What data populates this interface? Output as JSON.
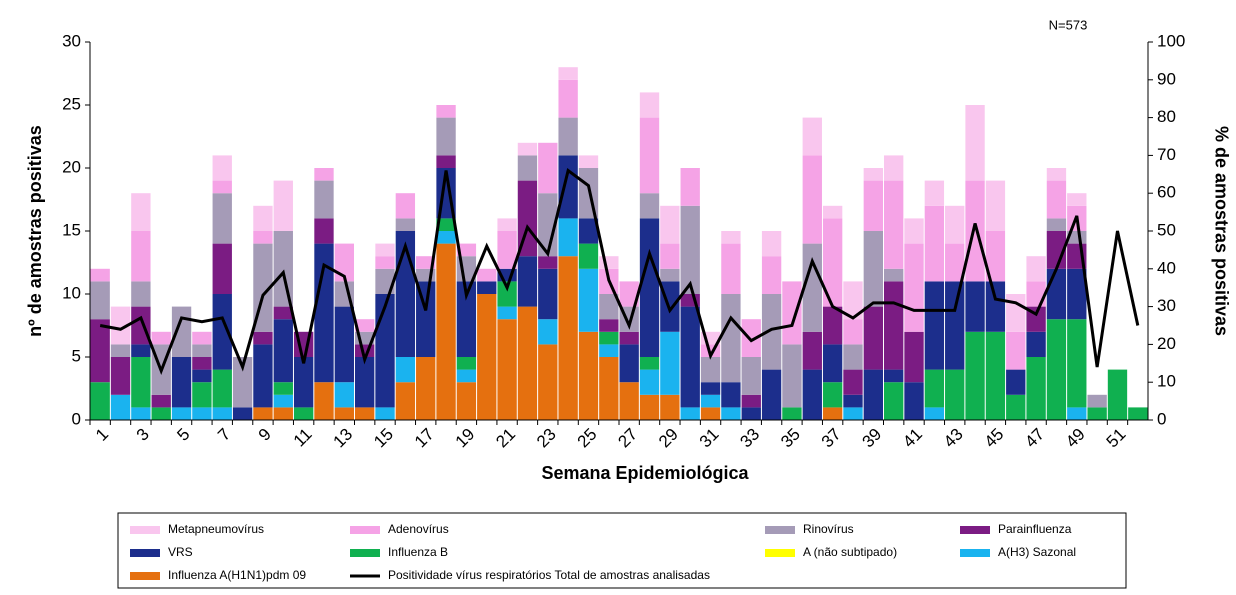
{
  "chart_data": {
    "type": "bar",
    "stacked": true,
    "annotation": "N=573",
    "x_label": "Semana Epidemiológica",
    "y_label": "nº de amostras positivas",
    "y2_label": "% de amostras positivas",
    "categories": [
      1,
      null,
      3,
      null,
      5,
      null,
      7,
      null,
      9,
      null,
      11,
      null,
      13,
      null,
      15,
      null,
      17,
      null,
      19,
      null,
      21,
      null,
      23,
      null,
      25,
      null,
      27,
      null,
      29,
      null,
      31,
      null,
      33,
      null,
      35,
      null,
      37,
      null,
      39,
      null,
      41,
      null,
      43,
      null,
      45,
      null,
      47,
      null,
      49,
      null,
      51,
      null
    ],
    "ylim": [
      0,
      30
    ],
    "yticks": [
      0,
      5,
      10,
      15,
      20,
      25,
      30
    ],
    "y2lim": [
      0,
      100
    ],
    "y2ticks": [
      0,
      10,
      20,
      30,
      40,
      50,
      60,
      70,
      80,
      90,
      100
    ],
    "series": [
      {
        "name": "Metapneumovírus",
        "color": "#f9c6ee",
        "values": [
          0,
          3,
          3,
          0,
          0,
          0,
          2,
          0,
          2,
          4,
          0,
          0,
          0,
          0,
          1,
          0,
          0,
          0,
          0,
          0,
          1,
          1,
          0,
          1,
          1,
          1,
          0,
          2,
          3,
          0,
          1,
          1,
          0,
          2,
          0,
          3,
          1,
          3,
          1,
          2,
          2,
          2,
          3,
          6,
          4,
          3,
          2,
          1,
          1,
          0,
          0,
          0
        ]
      },
      {
        "name": "Adenovírus",
        "color": "#f5a3e6",
        "values": [
          1,
          0,
          4,
          1,
          0,
          1,
          1,
          0,
          1,
          0,
          0,
          1,
          3,
          1,
          1,
          2,
          1,
          1,
          1,
          1,
          3,
          0,
          4,
          3,
          0,
          2,
          2,
          6,
          2,
          3,
          1,
          4,
          3,
          3,
          5,
          7,
          7,
          2,
          4,
          7,
          7,
          6,
          3,
          8,
          4,
          3,
          2,
          3,
          2,
          0,
          0,
          0
        ]
      },
      {
        "name": "Rinovírus",
        "color": "#a59bb7",
        "values": [
          3,
          1,
          2,
          4,
          4,
          1,
          4,
          4,
          7,
          6,
          0,
          3,
          2,
          1,
          2,
          1,
          1,
          3,
          2,
          0,
          0,
          2,
          5,
          3,
          4,
          2,
          2,
          2,
          1,
          7,
          2,
          7,
          3,
          6,
          5,
          7,
          0,
          2,
          6,
          1,
          0,
          0,
          0,
          0,
          0,
          0,
          0,
          1,
          1,
          1,
          0,
          0
        ]
      },
      {
        "name": "Parainfluenza",
        "color": "#7b1c83",
        "values": [
          5,
          3,
          3,
          1,
          0,
          1,
          4,
          0,
          1,
          1,
          2,
          2,
          0,
          1,
          0,
          0,
          0,
          1,
          0,
          0,
          0,
          6,
          1,
          0,
          0,
          1,
          1,
          0,
          0,
          1,
          0,
          0,
          1,
          0,
          0,
          3,
          3,
          2,
          5,
          7,
          4,
          0,
          0,
          0,
          0,
          0,
          2,
          3,
          2,
          0,
          0,
          0
        ]
      },
      {
        "name": "VRS",
        "color": "#1c2e8c",
        "values": [
          0,
          0,
          1,
          0,
          4,
          1,
          6,
          1,
          5,
          5,
          4,
          11,
          6,
          4,
          9,
          10,
          6,
          4,
          6,
          1,
          1,
          4,
          4,
          5,
          2,
          0,
          3,
          11,
          4,
          8,
          1,
          2,
          1,
          4,
          0,
          4,
          3,
          1,
          4,
          1,
          3,
          7,
          7,
          4,
          4,
          2,
          2,
          4,
          4,
          0,
          0,
          0
        ]
      },
      {
        "name": "Influenza B",
        "color": "#10b050",
        "values": [
          3,
          0,
          4,
          1,
          0,
          2,
          3,
          0,
          0,
          1,
          1,
          0,
          0,
          0,
          0,
          0,
          0,
          1,
          1,
          0,
          2,
          0,
          0,
          0,
          2,
          1,
          0,
          1,
          0,
          0,
          0,
          0,
          0,
          0,
          1,
          0,
          2,
          0,
          0,
          3,
          0,
          3,
          4,
          7,
          7,
          2,
          5,
          8,
          7,
          1,
          4,
          1
        ]
      },
      {
        "name": "A (não subtipado)",
        "color": "#ffff00",
        "values": [
          0,
          0,
          0,
          0,
          0,
          0,
          0,
          0,
          0,
          0,
          0,
          0,
          0,
          0,
          0,
          0,
          0,
          0,
          0,
          0,
          0,
          0,
          0,
          0,
          0,
          0,
          0,
          0,
          0,
          0,
          0,
          0,
          0,
          0,
          0,
          0,
          0,
          0,
          0,
          0,
          0,
          0,
          0,
          0,
          0,
          0,
          0,
          0,
          0,
          0,
          0,
          0
        ]
      },
      {
        "name": "A(H3) Sazonal",
        "color": "#1ab3ef",
        "values": [
          0,
          2,
          1,
          0,
          1,
          1,
          1,
          0,
          0,
          1,
          0,
          0,
          2,
          0,
          1,
          2,
          0,
          1,
          1,
          0,
          1,
          0,
          2,
          3,
          5,
          1,
          0,
          2,
          5,
          1,
          1,
          1,
          0,
          0,
          0,
          0,
          0,
          1,
          0,
          0,
          0,
          1,
          0,
          0,
          0,
          0,
          0,
          0,
          1,
          0,
          0,
          0
        ]
      },
      {
        "name": "Influenza A(H1N1)pdm 09",
        "color": "#e5700f",
        "values": [
          0,
          0,
          0,
          0,
          0,
          0,
          0,
          0,
          1,
          1,
          0,
          3,
          1,
          1,
          0,
          3,
          5,
          14,
          3,
          10,
          8,
          9,
          6,
          13,
          7,
          5,
          3,
          2,
          2,
          0,
          1,
          0,
          0,
          0,
          0,
          0,
          1,
          0,
          0,
          0,
          0,
          0,
          0,
          0,
          0,
          0,
          0,
          0,
          0,
          0,
          0,
          0
        ]
      },
      {
        "name": "Positividade vírus respiratórios Total de amostras analisadas",
        "color": "#000000",
        "axis": "y2",
        "type": "line",
        "values": [
          25,
          24,
          27,
          13,
          27,
          26,
          27,
          14,
          33,
          39,
          15,
          41,
          38,
          16,
          30,
          46,
          29,
          66,
          33,
          46,
          35,
          51,
          44,
          66,
          62,
          37,
          25,
          44,
          29,
          36,
          17,
          27,
          21,
          24,
          25,
          42,
          30,
          27,
          31,
          31,
          29,
          29,
          29,
          52,
          32,
          31,
          28,
          40,
          54,
          14,
          50,
          25
        ]
      }
    ]
  }
}
